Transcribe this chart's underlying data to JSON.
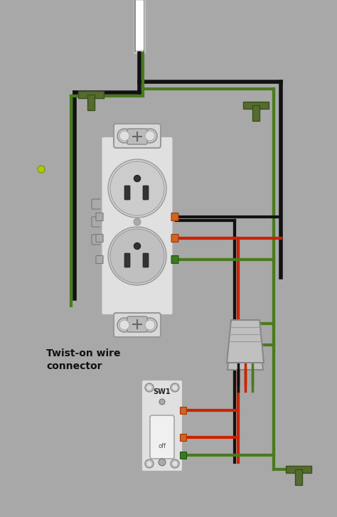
{
  "bg_color": "#a8a8a8",
  "wire_black": "#111111",
  "wire_green": "#4a7a1e",
  "wire_red": "#cc2200",
  "wire_gray": "#999999",
  "wire_lw": 3.0,
  "ground_color": "#556b2f",
  "label_text": "Twist-on wire\nconnector",
  "label_fontsize": 10,
  "sw_label": "SW1"
}
